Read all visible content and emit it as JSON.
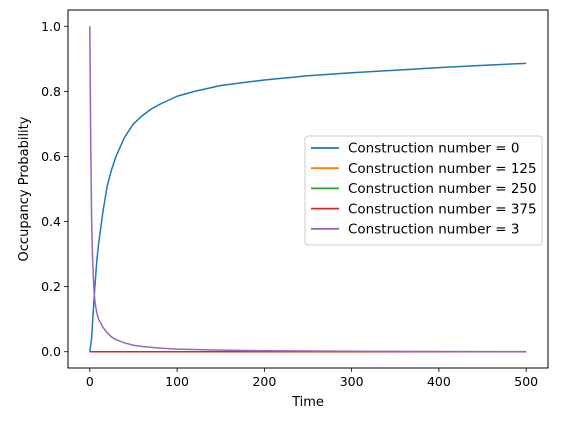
{
  "chart_data": {
    "type": "line",
    "title": "",
    "xlabel": "Time",
    "ylabel": "Occupancy Probability",
    "xlim": [
      -25,
      525
    ],
    "ylim": [
      -0.05,
      1.05
    ],
    "xticks": [
      0,
      100,
      200,
      300,
      400,
      500
    ],
    "yticks": [
      0.0,
      0.2,
      0.4,
      0.6,
      0.8,
      1.0
    ],
    "xtick_labels": [
      "0",
      "100",
      "200",
      "300",
      "400",
      "500"
    ],
    "ytick_labels": [
      "0.0",
      "0.2",
      "0.4",
      "0.6",
      "0.8",
      "1.0"
    ],
    "grid": false,
    "legend_position": "center-right",
    "series": [
      {
        "name": "Construction number = 0",
        "color": "#1f77b4",
        "x": [
          0,
          2,
          5,
          8,
          10,
          15,
          20,
          25,
          30,
          40,
          50,
          60,
          70,
          80,
          100,
          120,
          150,
          200,
          250,
          300,
          350,
          400,
          450,
          500
        ],
        "y": [
          0.0,
          0.04,
          0.17,
          0.28,
          0.33,
          0.43,
          0.51,
          0.56,
          0.6,
          0.66,
          0.7,
          0.725,
          0.745,
          0.76,
          0.785,
          0.8,
          0.818,
          0.835,
          0.848,
          0.857,
          0.865,
          0.873,
          0.88,
          0.886
        ]
      },
      {
        "name": "Construction number = 125",
        "color": "#ff7f0e",
        "x": [
          0,
          500
        ],
        "y": [
          0.0,
          0.0
        ]
      },
      {
        "name": "Construction number = 250",
        "color": "#2ca02c",
        "x": [
          0,
          500
        ],
        "y": [
          0.0,
          0.0
        ]
      },
      {
        "name": "Construction number = 375",
        "color": "#d62728",
        "x": [
          0,
          500
        ],
        "y": [
          0.0,
          0.0
        ]
      },
      {
        "name": "Construction number = 3",
        "color": "#9467bd",
        "x": [
          0,
          1,
          2,
          3,
          4,
          5,
          6,
          8,
          10,
          15,
          20,
          25,
          30,
          40,
          50,
          60,
          80,
          100,
          150,
          200,
          300,
          400,
          500
        ],
        "y": [
          1.0,
          0.65,
          0.42,
          0.3,
          0.23,
          0.18,
          0.15,
          0.12,
          0.1,
          0.075,
          0.058,
          0.045,
          0.037,
          0.027,
          0.02,
          0.016,
          0.011,
          0.008,
          0.005,
          0.003,
          0.0015,
          0.0008,
          0.0004
        ]
      }
    ]
  }
}
